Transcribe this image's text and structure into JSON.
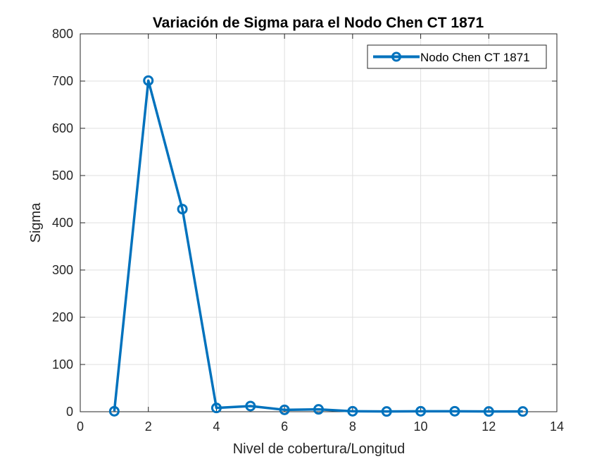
{
  "chart_data": {
    "type": "line",
    "title": "Variación de Sigma para el Nodo Chen CT 1871",
    "xlabel": "Nivel de cobertura/Longitud",
    "ylabel": "Sigma",
    "xlim": [
      0,
      14
    ],
    "ylim": [
      0,
      800
    ],
    "xticks": [
      0,
      2,
      4,
      6,
      8,
      10,
      12,
      14
    ],
    "yticks": [
      0,
      100,
      200,
      300,
      400,
      500,
      600,
      700,
      800
    ],
    "grid": true,
    "legend_position": "top-right",
    "series": [
      {
        "name": "Nodo Chen CT 1871",
        "color": "#0072BD",
        "marker": "circle",
        "x": [
          1,
          2,
          3,
          4,
          5,
          6,
          7,
          8,
          9,
          10,
          11,
          12,
          13
        ],
        "y": [
          1,
          701,
          429,
          8,
          12,
          4,
          5,
          1,
          0.5,
          1,
          1,
          0.5,
          0.5
        ]
      }
    ]
  }
}
